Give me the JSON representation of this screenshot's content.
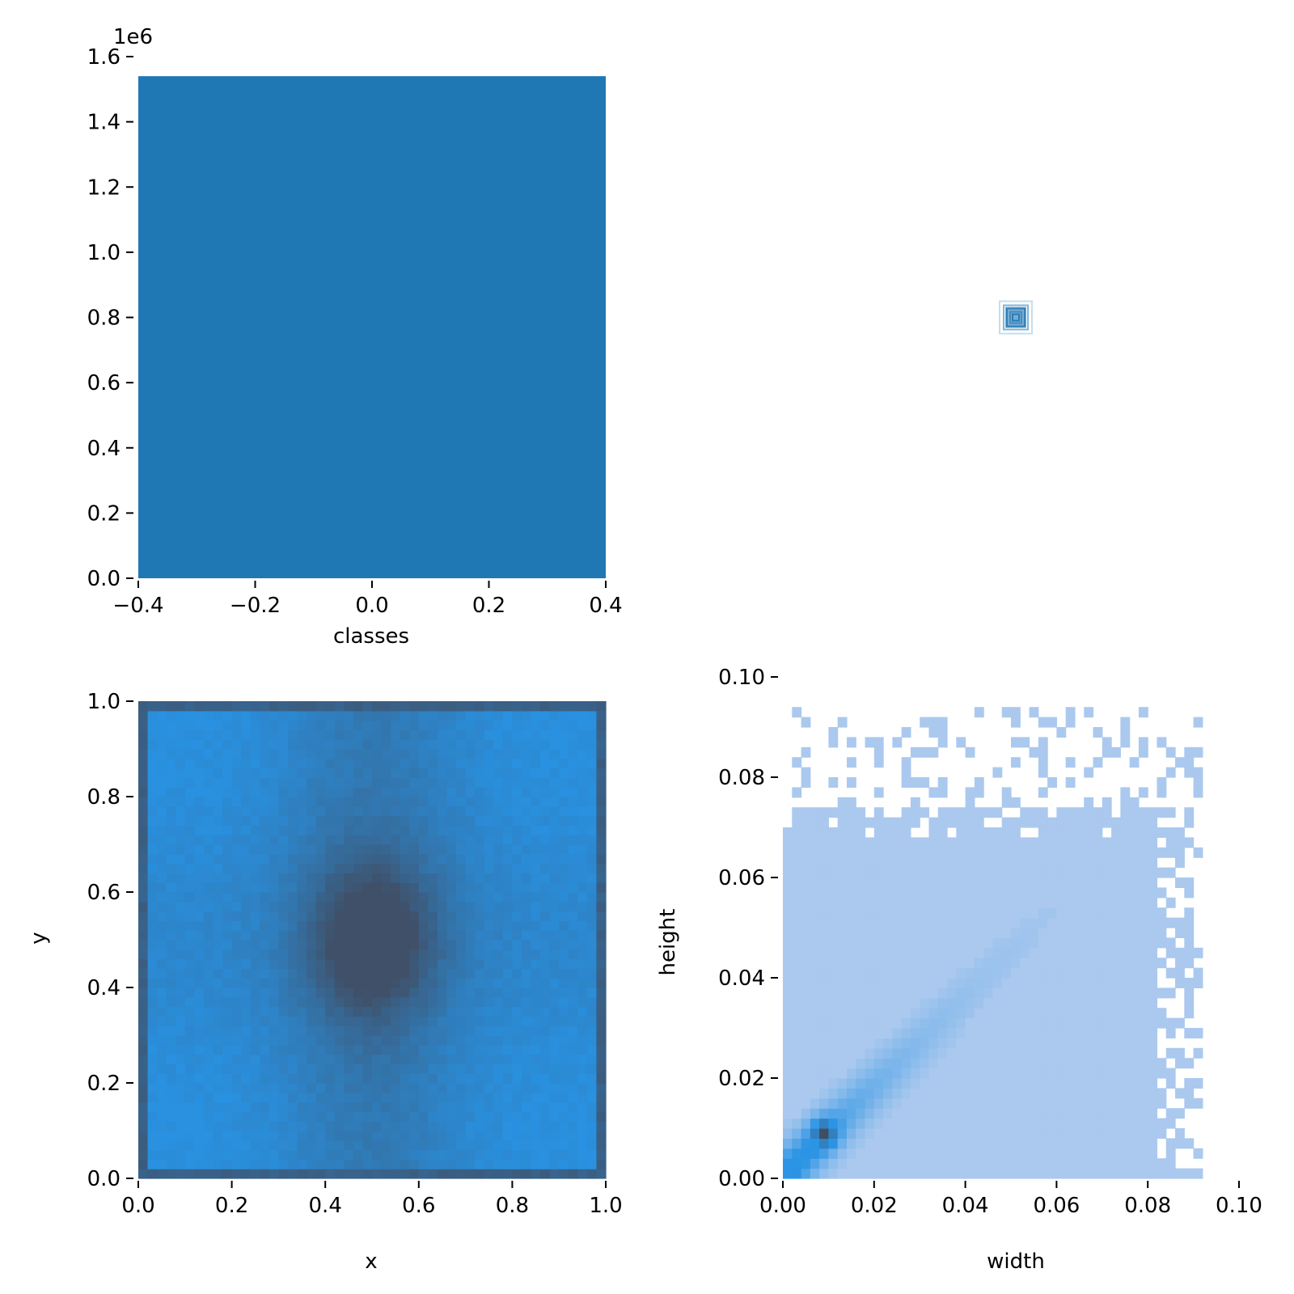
{
  "chart_data": [
    {
      "id": "classes-hist",
      "type": "bar",
      "xlabel": "classes",
      "ylabel": "",
      "offset_text": "1e6",
      "xlim": [
        -0.4,
        0.4
      ],
      "ylim": [
        0,
        1600000
      ],
      "xticks": [
        "−0.4",
        "−0.2",
        "0.0",
        "0.2",
        "0.4"
      ],
      "yticks": [
        "0.0",
        "0.2",
        "0.4",
        "0.6",
        "0.8",
        "1.0",
        "1.2",
        "1.4",
        "1.6"
      ],
      "bars": [
        {
          "x0": -0.4,
          "x1": 0.4,
          "value": 1540000
        }
      ],
      "color": "#1f77b4",
      "grid": false
    },
    {
      "id": "center-marker",
      "type": "scatter",
      "points": [
        {
          "x": 0.5,
          "y": 0.5
        }
      ],
      "color": "#1f77b4",
      "grid": false
    },
    {
      "id": "xy-heatmap",
      "type": "heatmap",
      "xlabel": "x",
      "ylabel": "y",
      "xlim": [
        0,
        1
      ],
      "ylim": [
        0,
        1
      ],
      "xticks": [
        "0.0",
        "0.2",
        "0.4",
        "0.6",
        "0.8",
        "1.0"
      ],
      "yticks": [
        "0.0",
        "0.2",
        "0.4",
        "0.6",
        "0.8",
        "1.0"
      ],
      "colors": {
        "low": "#2991e0",
        "high": "#3f5068"
      },
      "grid": false
    },
    {
      "id": "wh-heatmap",
      "type": "heatmap",
      "xlabel": "width",
      "ylabel": "height",
      "xlim": [
        0,
        0.1
      ],
      "ylim": [
        0,
        0.1
      ],
      "xticks": [
        "0.00",
        "0.02",
        "0.04",
        "0.06",
        "0.08",
        "0.10"
      ],
      "yticks": [
        "0.00",
        "0.02",
        "0.04",
        "0.06",
        "0.08",
        "0.10"
      ],
      "colors": {
        "base": "#abc9ee",
        "mid": "#2b94e4",
        "high": "#3f4e63"
      },
      "grid": false
    }
  ]
}
